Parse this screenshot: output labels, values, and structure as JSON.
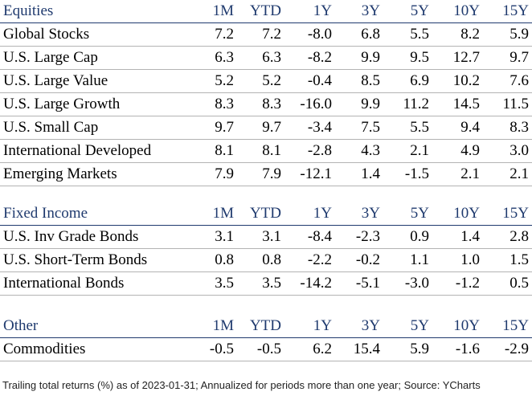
{
  "columns": [
    "1M",
    "YTD",
    "1Y",
    "3Y",
    "5Y",
    "10Y",
    "15Y"
  ],
  "sections": [
    {
      "title": "Equities",
      "rows": [
        {
          "name": "Global Stocks",
          "values": [
            "7.2",
            "7.2",
            "-8.0",
            "6.8",
            "5.5",
            "8.2",
            "5.9"
          ]
        },
        {
          "name": "U.S. Large Cap",
          "values": [
            "6.3",
            "6.3",
            "-8.2",
            "9.9",
            "9.5",
            "12.7",
            "9.7"
          ]
        },
        {
          "name": "U.S. Large Value",
          "values": [
            "5.2",
            "5.2",
            "-0.4",
            "8.5",
            "6.9",
            "10.2",
            "7.6"
          ]
        },
        {
          "name": "U.S. Large Growth",
          "values": [
            "8.3",
            "8.3",
            "-16.0",
            "9.9",
            "11.2",
            "14.5",
            "11.5"
          ]
        },
        {
          "name": "U.S. Small Cap",
          "values": [
            "9.7",
            "9.7",
            "-3.4",
            "7.5",
            "5.5",
            "9.4",
            "8.3"
          ]
        },
        {
          "name": "International Developed",
          "values": [
            "8.1",
            "8.1",
            "-2.8",
            "4.3",
            "2.1",
            "4.9",
            "3.0"
          ]
        },
        {
          "name": "Emerging Markets",
          "values": [
            "7.9",
            "7.9",
            "-12.1",
            "1.4",
            "-1.5",
            "2.1",
            "2.1"
          ]
        }
      ]
    },
    {
      "title": "Fixed Income",
      "rows": [
        {
          "name": "U.S. Inv Grade Bonds",
          "values": [
            "3.1",
            "3.1",
            "-8.4",
            "-2.3",
            "0.9",
            "1.4",
            "2.8"
          ]
        },
        {
          "name": "U.S. Short-Term Bonds",
          "values": [
            "0.8",
            "0.8",
            "-2.2",
            "-0.2",
            "1.1",
            "1.0",
            "1.5"
          ]
        },
        {
          "name": "International Bonds",
          "values": [
            "3.5",
            "3.5",
            "-14.2",
            "-5.1",
            "-3.0",
            "-1.2",
            "0.5"
          ]
        }
      ]
    },
    {
      "title": "Other",
      "rows": [
        {
          "name": "Commodities",
          "values": [
            "-0.5",
            "-0.5",
            "6.2",
            "15.4",
            "5.9",
            "-1.6",
            "-2.9"
          ]
        }
      ]
    }
  ],
  "footnote": "Trailing total returns (%) as of 2023-01-31; Annualized for periods more than one year; Source: YCharts",
  "colors": {
    "header_text": "#1f3a6e",
    "header_rule": "#1f3a6e",
    "row_rule": "#b3b3b3"
  }
}
